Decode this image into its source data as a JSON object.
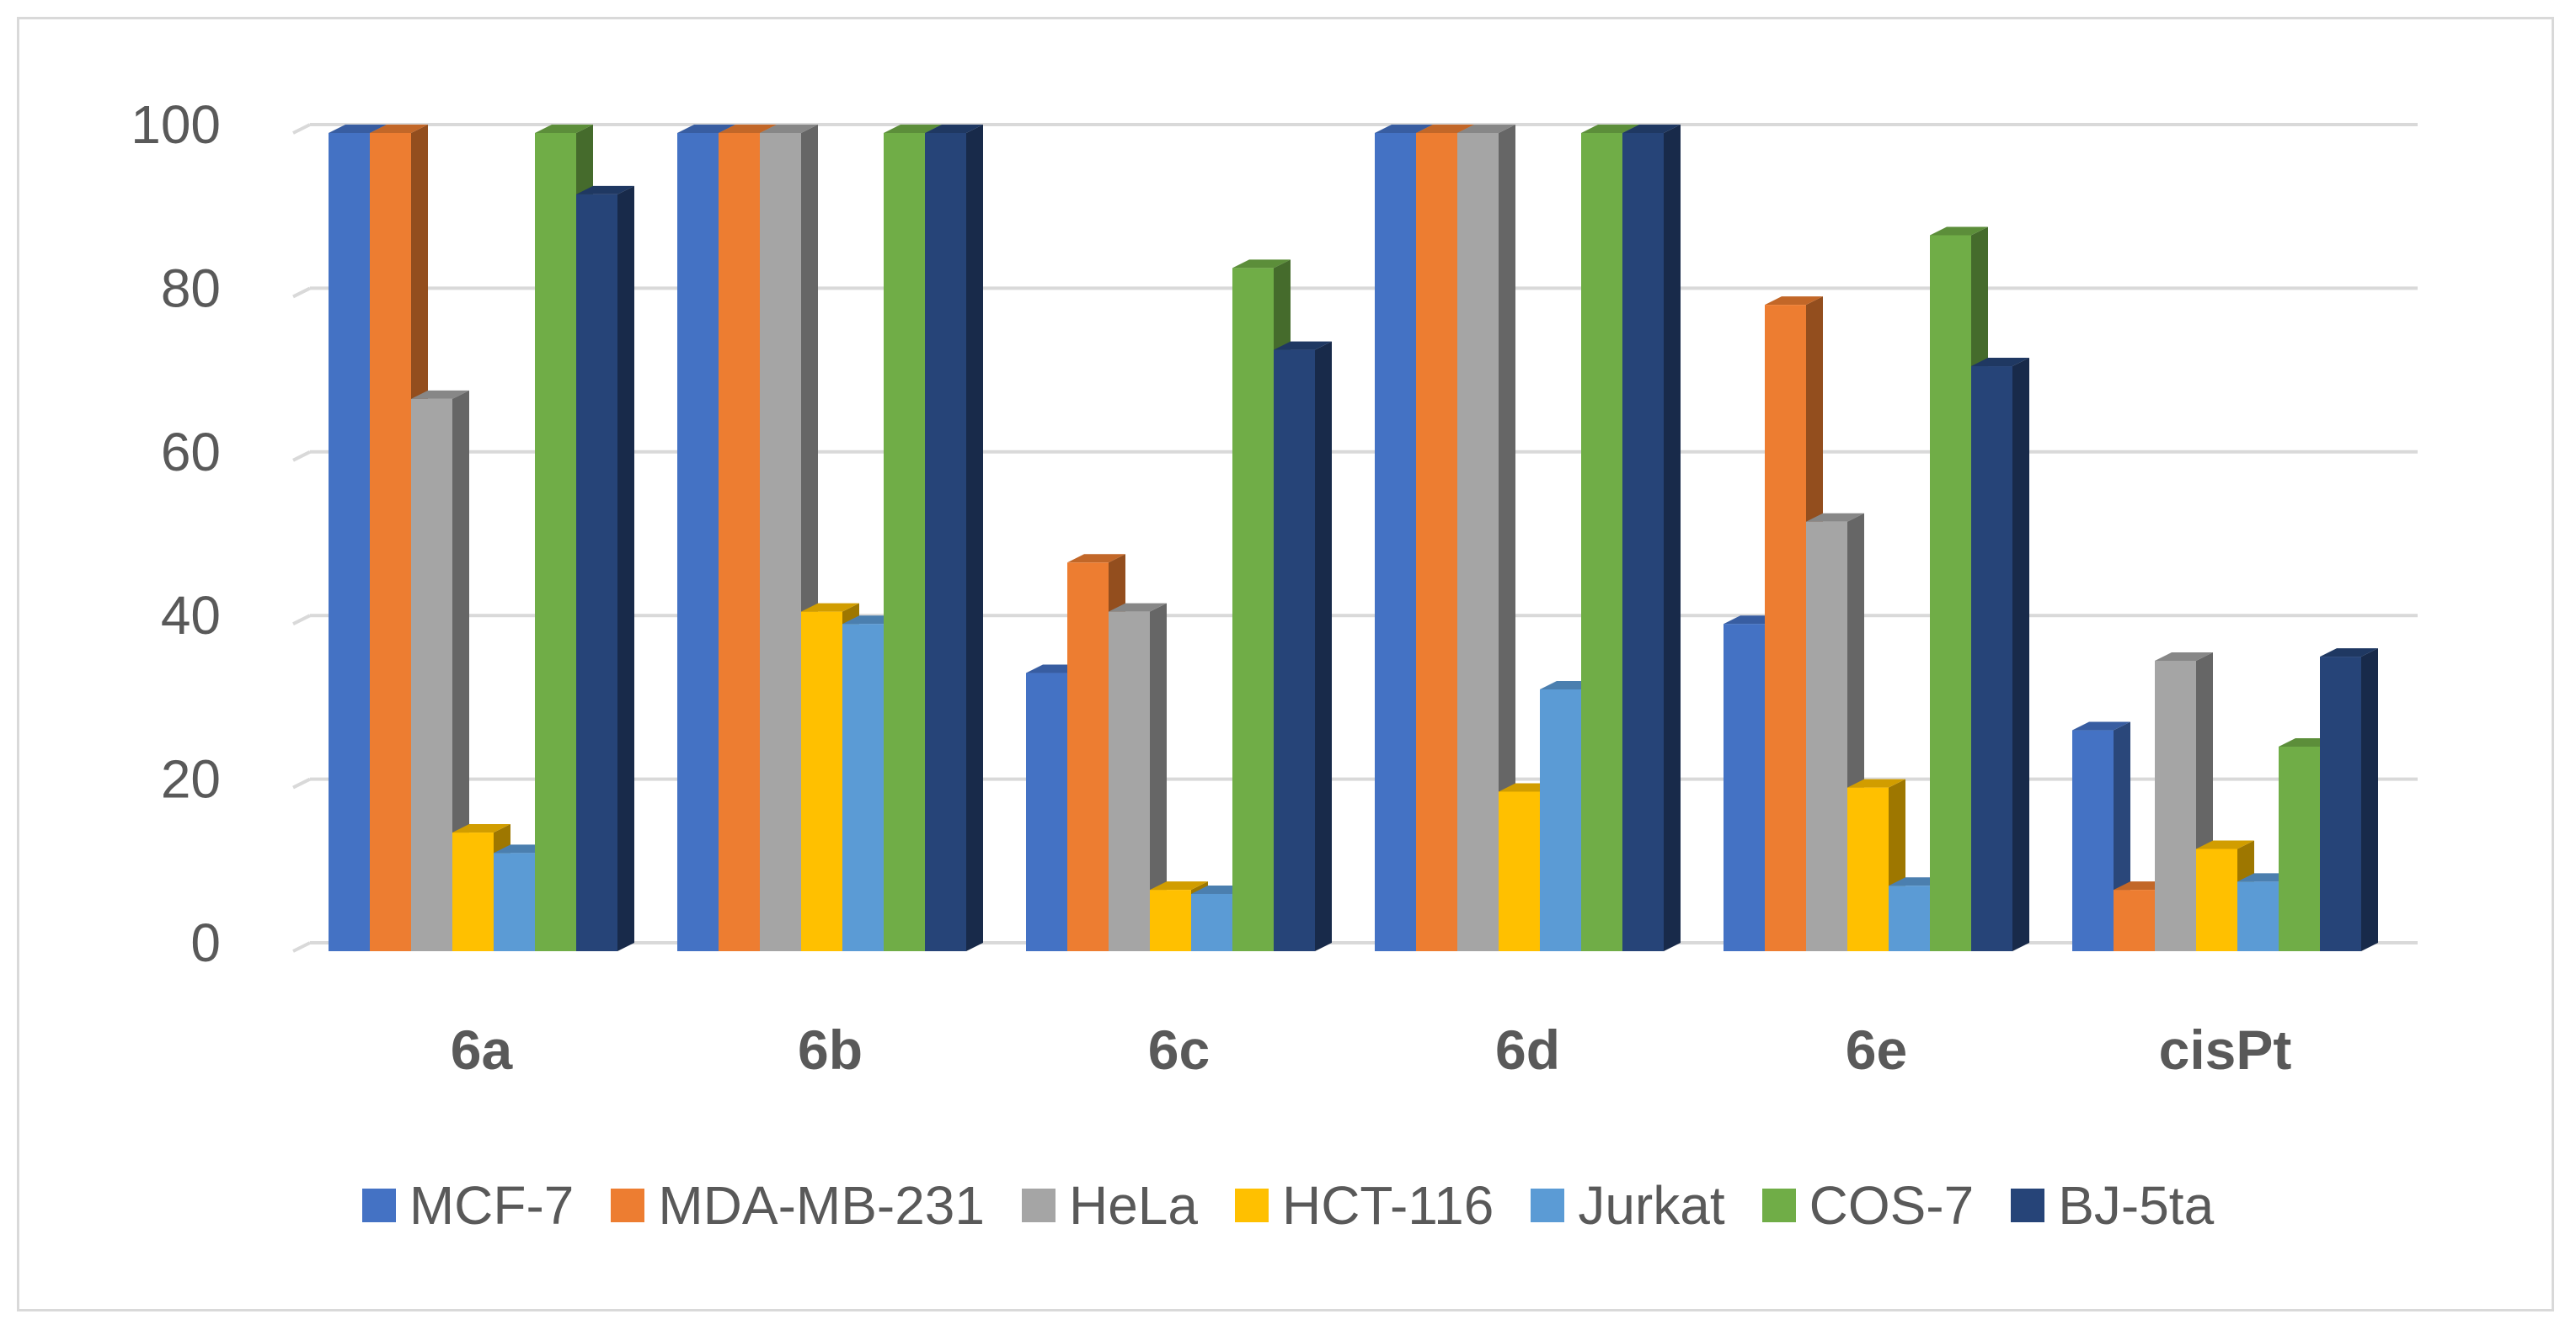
{
  "chart_data": {
    "type": "bar",
    "style": "3d-clustered-column",
    "categories": [
      "6a",
      "6b",
      "6c",
      "6d",
      "6e",
      "cisPt"
    ],
    "series": [
      {
        "name": "MCF-7",
        "color": "#4472C4",
        "values": [
          100,
          100,
          34,
          100,
          40,
          27
        ]
      },
      {
        "name": "MDA-MB-231",
        "color": "#ED7D31",
        "values": [
          100,
          100,
          47.5,
          100,
          79,
          7.5
        ]
      },
      {
        "name": "HeLa",
        "color": "#A5A5A5",
        "values": [
          67.5,
          100,
          41.5,
          100,
          52.5,
          35.5
        ]
      },
      {
        "name": "HCT-116",
        "color": "#FFC000",
        "values": [
          14.5,
          41.5,
          7.5,
          19.5,
          20,
          12.5
        ]
      },
      {
        "name": "Jurkat",
        "color": "#5B9BD5",
        "values": [
          12,
          40,
          7,
          32,
          8,
          8.5
        ]
      },
      {
        "name": "COS-7",
        "color": "#70AD47",
        "values": [
          100,
          100,
          83.5,
          100,
          87.5,
          25
        ]
      },
      {
        "name": "BJ-5ta",
        "color": "#264478",
        "values": [
          92.5,
          100,
          73.5,
          100,
          71.5,
          36
        ]
      }
    ],
    "y_ticks": [
      "0",
      "20",
      "40",
      "60",
      "80",
      "100"
    ],
    "ylim": [
      0,
      100
    ],
    "title": "",
    "xlabel": "",
    "ylabel": "",
    "grid": true,
    "legend": "bottom"
  }
}
